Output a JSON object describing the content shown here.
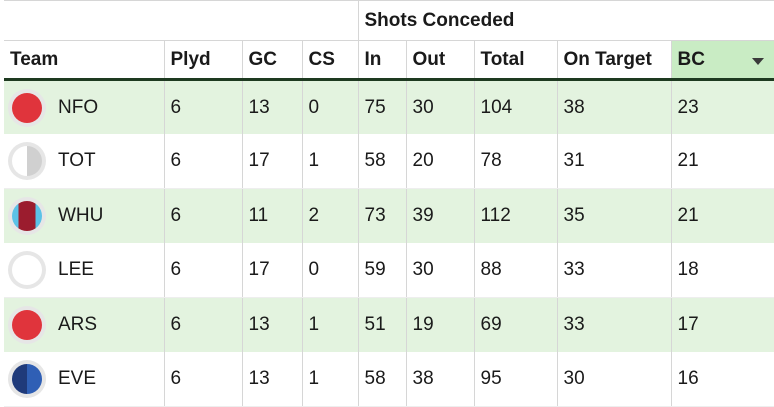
{
  "table": {
    "group_header": "Shots Conceded",
    "columns": [
      "Team",
      "Plyd",
      "GC",
      "CS",
      "In",
      "Out",
      "Total",
      "On Target",
      "BC"
    ],
    "sorted_column": "BC",
    "rows": [
      {
        "team": "NFO",
        "plyd": "6",
        "gc": "13",
        "cs": "0",
        "in": "75",
        "out": "30",
        "total": "104",
        "on_target": "38",
        "bc": "23",
        "badge_icon": "nfo-badge-icon",
        "badge_color": "#e0343c",
        "badge_style": "solid"
      },
      {
        "team": "TOT",
        "plyd": "6",
        "gc": "17",
        "cs": "1",
        "in": "58",
        "out": "20",
        "total": "78",
        "on_target": "31",
        "bc": "21",
        "badge_icon": "tot-badge-icon",
        "badge_color": "#ffffff",
        "badge_color2": "#d0d0d0",
        "badge_style": "half"
      },
      {
        "team": "WHU",
        "plyd": "6",
        "gc": "11",
        "cs": "2",
        "in": "73",
        "out": "39",
        "total": "112",
        "on_target": "35",
        "bc": "21",
        "badge_icon": "whu-badge-icon",
        "badge_color": "#9b1c2e",
        "badge_color2": "#5bc2e7",
        "badge_style": "stripes"
      },
      {
        "team": "LEE",
        "plyd": "6",
        "gc": "17",
        "cs": "0",
        "in": "59",
        "out": "30",
        "total": "88",
        "on_target": "33",
        "bc": "18",
        "badge_icon": "lee-badge-icon",
        "badge_color": "#ffffff",
        "badge_style": "solid"
      },
      {
        "team": "ARS",
        "plyd": "6",
        "gc": "13",
        "cs": "1",
        "in": "51",
        "out": "19",
        "total": "69",
        "on_target": "33",
        "bc": "17",
        "badge_icon": "ars-badge-icon",
        "badge_color": "#e0343c",
        "badge_style": "solid"
      },
      {
        "team": "EVE",
        "plyd": "6",
        "gc": "13",
        "cs": "1",
        "in": "58",
        "out": "38",
        "total": "95",
        "on_target": "30",
        "bc": "16",
        "badge_icon": "eve-badge-icon",
        "badge_color": "#1f3a7a",
        "badge_color2": "#2f5fb5",
        "badge_style": "half"
      }
    ]
  },
  "colors": {
    "row_alt_bg": "#e3f3df",
    "sorted_header_bg": "#c9ecc4",
    "header_rule": "#1e3a20"
  }
}
